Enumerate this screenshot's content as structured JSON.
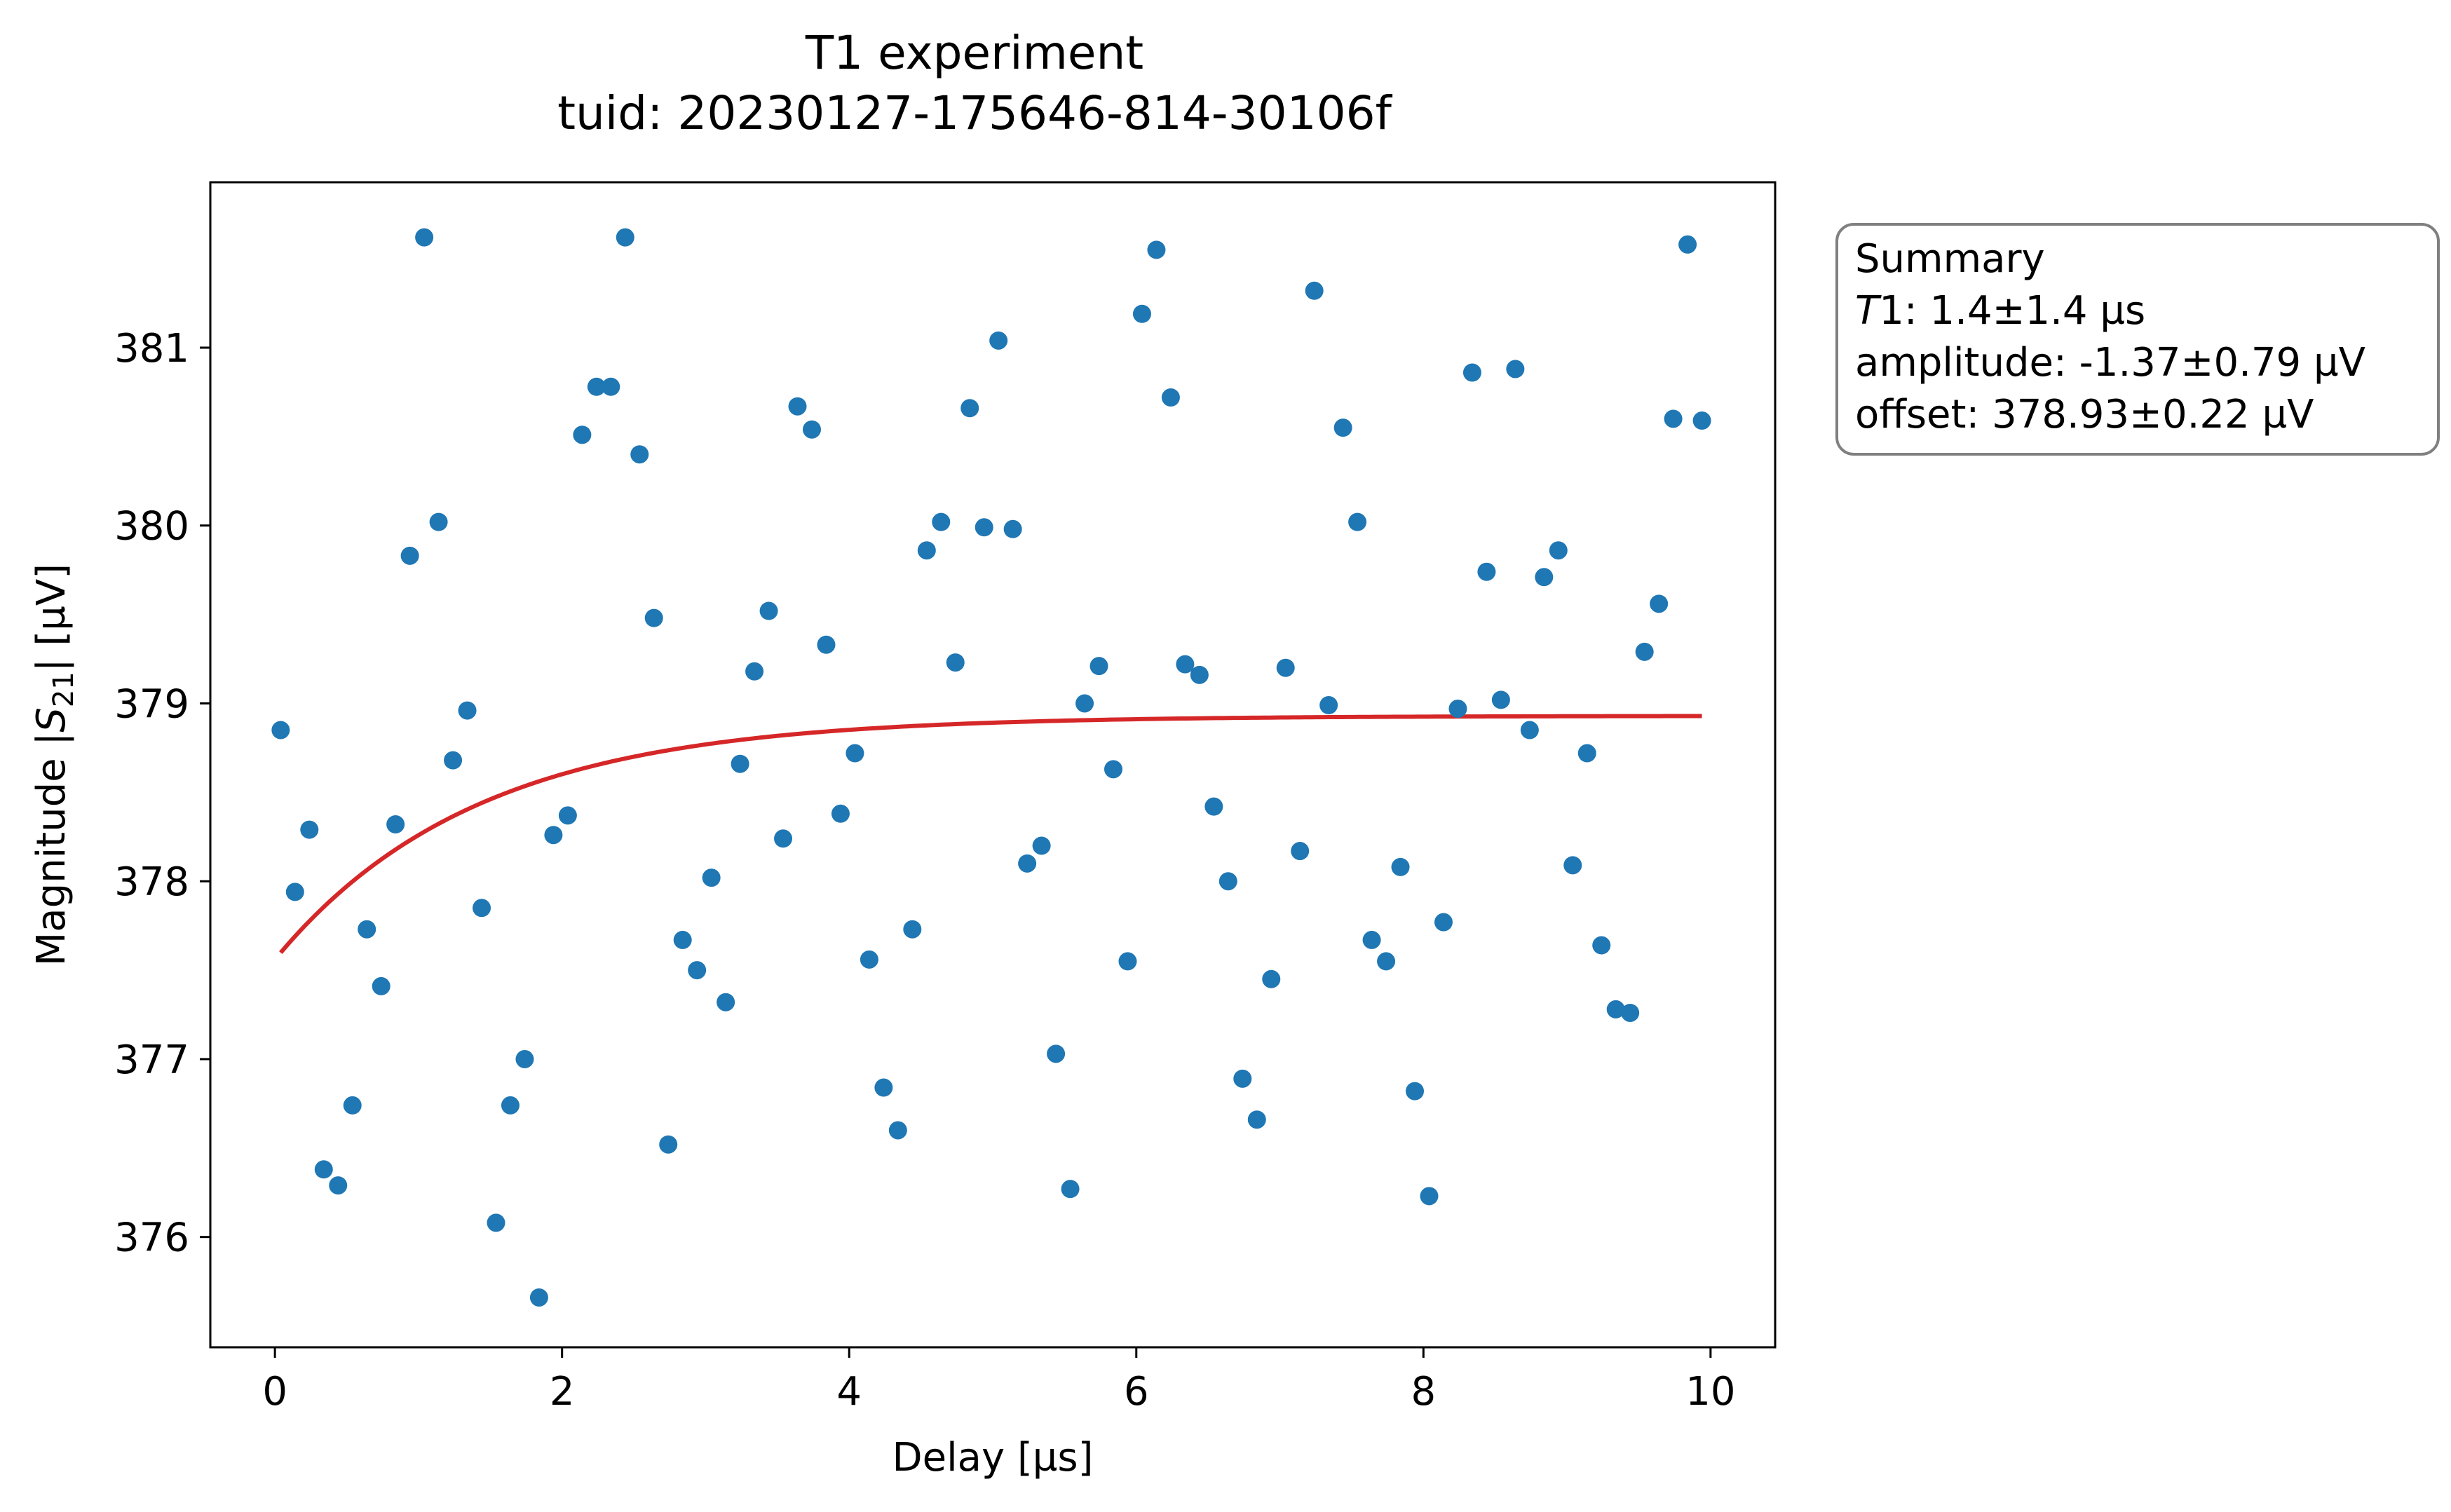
{
  "colors": {
    "points": "#1f77b4",
    "fit": "#d62728",
    "summary_border": "#808080"
  },
  "chart_data": {
    "type": "scatter",
    "title": "T1 experiment",
    "subtitle": "tuid: 20230127-175646-814-30106f",
    "xlabel": "Delay [µs]",
    "ylabel_prefix": "Magnitude |",
    "ylabel_symbol": "S",
    "ylabel_subscript": "21",
    "ylabel_suffix": "| [µV]",
    "xlim": [
      -0.45,
      10.45
    ],
    "ylim": [
      375.38,
      381.93
    ],
    "xticks": [
      0,
      2,
      4,
      6,
      8,
      10
    ],
    "xtick_labels": [
      "0",
      "2",
      "4",
      "6",
      "8",
      "10"
    ],
    "yticks": [
      376,
      377,
      378,
      379,
      380,
      381
    ],
    "ytick_labels": [
      "376",
      "377",
      "378",
      "379",
      "380",
      "381"
    ],
    "grid": false,
    "series": [
      {
        "kind": "points",
        "x": [
          0.04,
          0.14,
          0.24,
          0.34,
          0.44,
          0.54,
          0.64,
          0.74,
          0.84,
          0.94,
          1.04,
          1.14,
          1.24,
          1.34,
          1.44,
          1.54,
          1.64,
          1.74,
          1.84,
          1.94,
          2.04,
          2.14,
          2.24,
          2.34,
          2.44,
          2.54,
          2.64,
          2.74,
          2.84,
          2.94,
          3.04,
          3.14,
          3.24,
          3.34,
          3.44,
          3.54,
          3.64,
          3.74,
          3.84,
          3.94,
          4.04,
          4.14,
          4.24,
          4.34,
          4.44,
          4.54,
          4.64,
          4.74,
          4.84,
          4.94,
          5.04,
          5.14,
          5.24,
          5.34,
          5.44,
          5.54,
          5.64,
          5.74,
          5.84,
          5.94,
          6.04,
          6.14,
          6.24,
          6.34,
          6.44,
          6.54,
          6.64,
          6.74,
          6.84,
          6.94,
          7.04,
          7.14,
          7.24,
          7.34,
          7.44,
          7.54,
          7.64,
          7.74,
          7.84,
          7.94,
          8.04,
          8.14,
          8.24,
          8.34,
          8.44,
          8.54,
          8.64,
          8.74,
          8.84,
          8.94,
          9.04,
          9.14,
          9.24,
          9.34,
          9.44,
          9.54,
          9.64,
          9.74,
          9.84,
          9.94
        ],
        "y": [
          378.85,
          377.94,
          378.29,
          376.38,
          376.29,
          376.74,
          377.73,
          377.41,
          378.32,
          379.83,
          381.62,
          380.02,
          378.68,
          378.96,
          377.85,
          376.08,
          376.74,
          377.0,
          375.66,
          378.26,
          378.37,
          380.51,
          380.78,
          380.78,
          381.62,
          380.4,
          379.48,
          376.52,
          377.67,
          377.5,
          378.02,
          377.32,
          378.66,
          379.18,
          379.52,
          378.24,
          380.67,
          380.54,
          379.33,
          378.38,
          378.72,
          377.56,
          376.84,
          376.6,
          377.73,
          379.86,
          380.02,
          379.23,
          380.66,
          379.99,
          381.04,
          379.98,
          378.1,
          378.2,
          377.03,
          376.27,
          379.0,
          379.21,
          378.63,
          377.55,
          381.19,
          381.55,
          380.72,
          379.22,
          379.16,
          378.42,
          378.0,
          376.89,
          376.66,
          377.45,
          379.2,
          378.17,
          381.32,
          378.99,
          380.55,
          380.02,
          377.67,
          377.55,
          378.08,
          376.82,
          376.23,
          377.77,
          378.97,
          380.86,
          379.74,
          379.02,
          380.88,
          378.85,
          379.71,
          379.86,
          378.09,
          378.72,
          377.64,
          377.28,
          377.26,
          379.29,
          379.56,
          380.6,
          381.58,
          380.59
        ]
      },
      {
        "kind": "fit",
        "model": "offset + amplitude * exp(-x / T1)",
        "T1": 1.4,
        "amplitude": -1.37,
        "offset": 378.93,
        "x_range": [
          0.04,
          9.94
        ]
      }
    ],
    "summary": {
      "heading": "Summary",
      "t1_symbol": "T",
      "t1_rest": "1: 1.4±1.4 µs",
      "amplitude": "amplitude: -1.37±0.79 µV",
      "offset": "offset: 378.93±0.22 µV",
      "placement": "outside-right-top"
    }
  }
}
